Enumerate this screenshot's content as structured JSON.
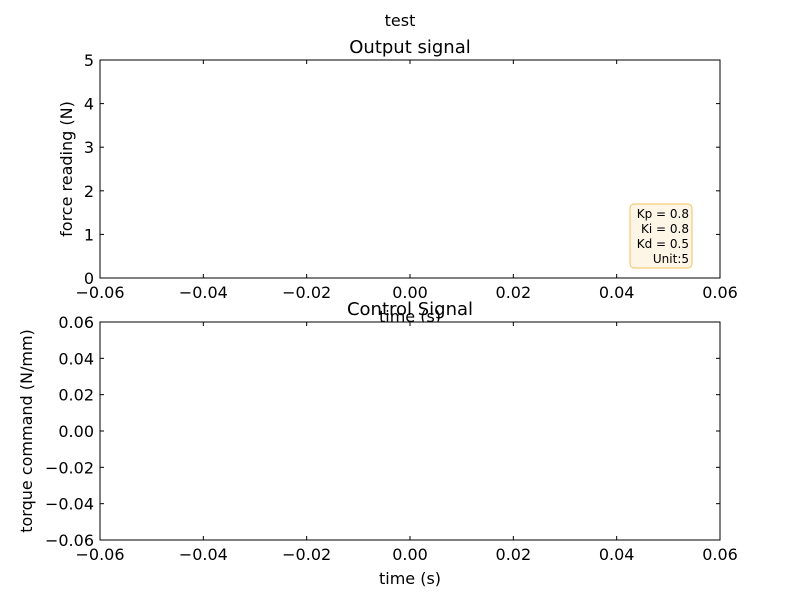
{
  "figure": {
    "suptitle": "test"
  },
  "chart_data": [
    {
      "type": "line",
      "title": "Output signal",
      "xlabel": "time (s)",
      "ylabel": "force reading (N)",
      "xlim": [
        -0.06,
        0.06
      ],
      "ylim": [
        0,
        5
      ],
      "xticks": [
        "−0.06",
        "−0.04",
        "−0.02",
        "0.00",
        "0.02",
        "0.04",
        "0.06"
      ],
      "yticks": [
        "0",
        "1",
        "2",
        "3",
        "4",
        "5"
      ],
      "grid": false,
      "series": [],
      "annotation": {
        "lines": [
          "Kp = 0.8",
          "Ki = 0.8",
          "Kd = 0.5",
          "Unit:5"
        ],
        "placement": "bottom-right",
        "background": "#fdf5e6",
        "border": "#f5c15c"
      }
    },
    {
      "type": "line",
      "title": "Control Signal",
      "xlabel": "time (s)",
      "ylabel": "torque command (N/mm)",
      "xlim": [
        -0.06,
        0.06
      ],
      "ylim": [
        -0.06,
        0.06
      ],
      "xticks": [
        "−0.06",
        "−0.04",
        "−0.02",
        "0.00",
        "0.02",
        "0.04",
        "0.06"
      ],
      "yticks": [
        "−0.06",
        "−0.04",
        "−0.02",
        "0.00",
        "0.02",
        "0.04",
        "0.06"
      ],
      "grid": false,
      "series": []
    }
  ]
}
